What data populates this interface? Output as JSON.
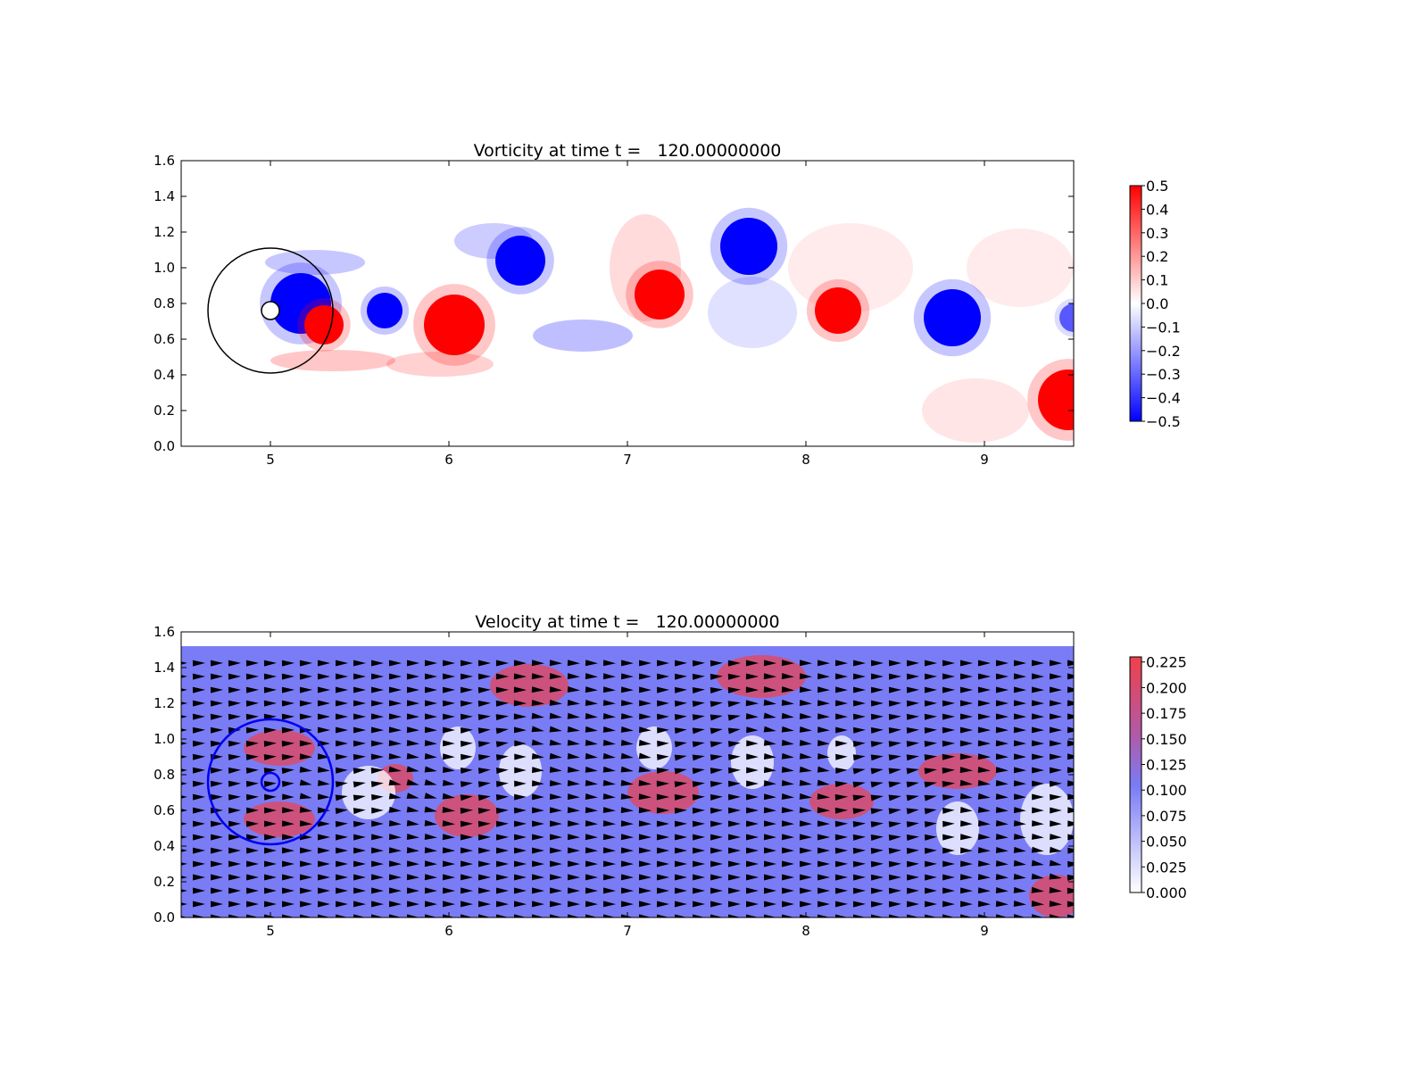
{
  "chart_data": [
    {
      "type": "heatmap",
      "title": "Vorticity at time t =   120.00000000",
      "xlim": [
        4.5,
        9.5
      ],
      "ylim": [
        0.0,
        1.6
      ],
      "xticks": [
        "5",
        "6",
        "7",
        "8",
        "9"
      ],
      "yticks": [
        "0.0",
        "0.2",
        "0.4",
        "0.6",
        "0.8",
        "1.0",
        "1.2",
        "1.4",
        "1.6"
      ],
      "colormap": "bwr",
      "colors": {
        "negative": "#0000ff",
        "zero": "#ffffff",
        "positive": "#ff0000"
      },
      "colorbar": {
        "range": [
          -0.5,
          0.5
        ],
        "ticks": [
          "0.5",
          "0.4",
          "0.3",
          "0.2",
          "0.1",
          "0.0",
          "−0.1",
          "−0.2",
          "−0.3",
          "−0.4",
          "−0.5"
        ]
      },
      "obstacle": {
        "cx": 5.0,
        "cy": 0.76,
        "r_outer": 0.35,
        "r_inner": 0.05
      },
      "vortices": [
        {
          "x": 5.17,
          "y": 0.8,
          "r": 0.17,
          "w": -0.5
        },
        {
          "x": 5.3,
          "y": 0.68,
          "r": 0.11,
          "w": 0.5
        },
        {
          "x": 5.64,
          "y": 0.76,
          "r": 0.1,
          "w": -0.5
        },
        {
          "x": 6.03,
          "y": 0.68,
          "r": 0.17,
          "w": 0.5
        },
        {
          "x": 6.4,
          "y": 1.04,
          "r": 0.14,
          "w": -0.5
        },
        {
          "x": 7.18,
          "y": 0.85,
          "r": 0.14,
          "w": 0.5
        },
        {
          "x": 7.68,
          "y": 1.12,
          "r": 0.16,
          "w": -0.5
        },
        {
          "x": 8.18,
          "y": 0.76,
          "r": 0.13,
          "w": 0.5
        },
        {
          "x": 8.82,
          "y": 0.72,
          "r": 0.16,
          "w": -0.5
        },
        {
          "x": 9.47,
          "y": 0.26,
          "r": 0.17,
          "w": 0.5
        },
        {
          "x": 9.5,
          "y": 0.72,
          "r": 0.08,
          "w": -0.3
        }
      ]
    },
    {
      "type": "heatmap",
      "title": "Velocity at time t =   120.00000000",
      "xlim": [
        4.5,
        9.5
      ],
      "ylim": [
        0.0,
        1.6
      ],
      "xticks": [
        "5",
        "6",
        "7",
        "8",
        "9"
      ],
      "yticks": [
        "0.0",
        "0.2",
        "0.4",
        "0.6",
        "0.8",
        "1.0",
        "1.2",
        "1.4",
        "1.6"
      ],
      "field_ymax": 1.52,
      "quiver": true,
      "colormap": "white-blue-red",
      "colors": {
        "low": "#ffffff",
        "mid": "#7a7cf6",
        "high": "#f0404a",
        "arrow": "#000000",
        "circle": "#0000ee"
      },
      "colorbar": {
        "range": [
          0.0,
          0.23
        ],
        "ticks": [
          "0.225",
          "0.200",
          "0.175",
          "0.150",
          "0.125",
          "0.100",
          "0.075",
          "0.050",
          "0.025",
          "0.000"
        ]
      },
      "obstacle": {
        "cx": 5.0,
        "cy": 0.76,
        "r_outer": 0.35,
        "r_inner": 0.05
      }
    }
  ]
}
